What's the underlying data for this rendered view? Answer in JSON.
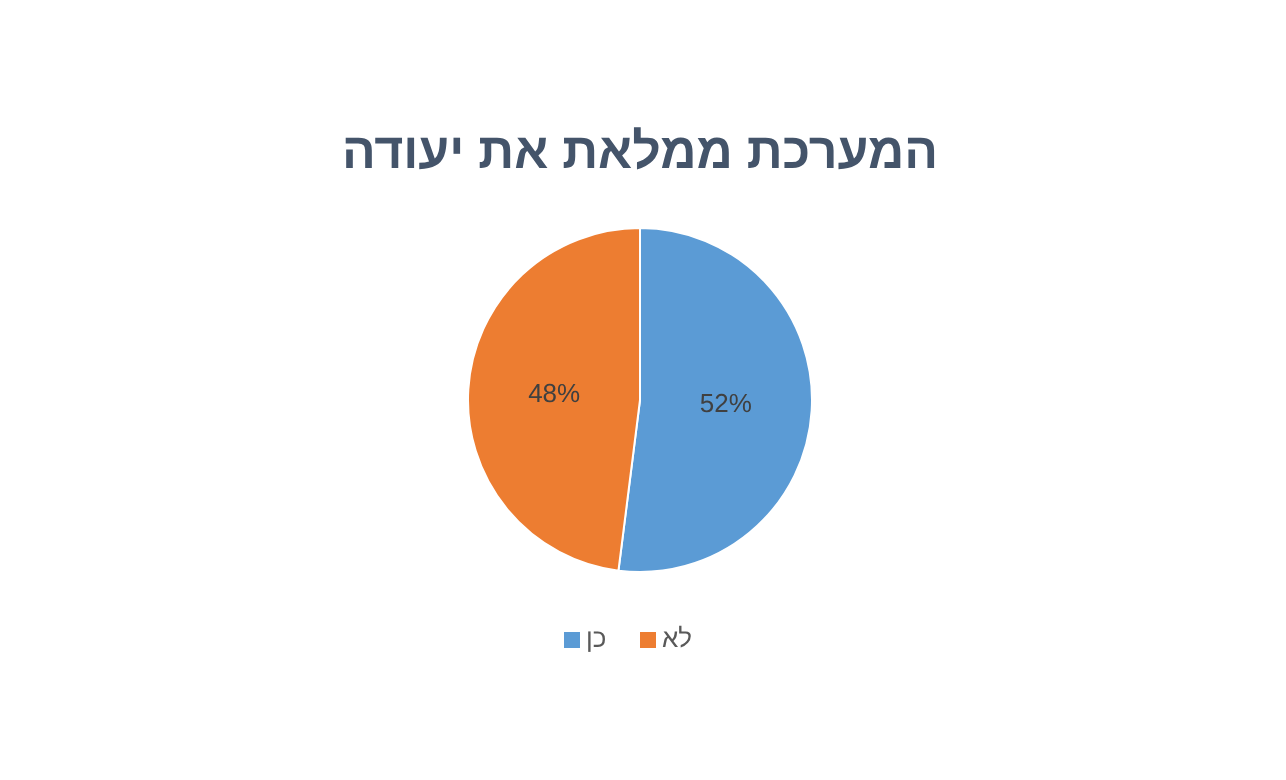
{
  "chart_data": {
    "type": "pie",
    "title": "המערכת ממלאת את יעודה",
    "categories": [
      "כן",
      "לא"
    ],
    "values": [
      52,
      48
    ],
    "colors": [
      "#5b9bd5",
      "#ed7d31"
    ],
    "value_labels": [
      "52%",
      "48%"
    ],
    "legend": "bottom"
  }
}
